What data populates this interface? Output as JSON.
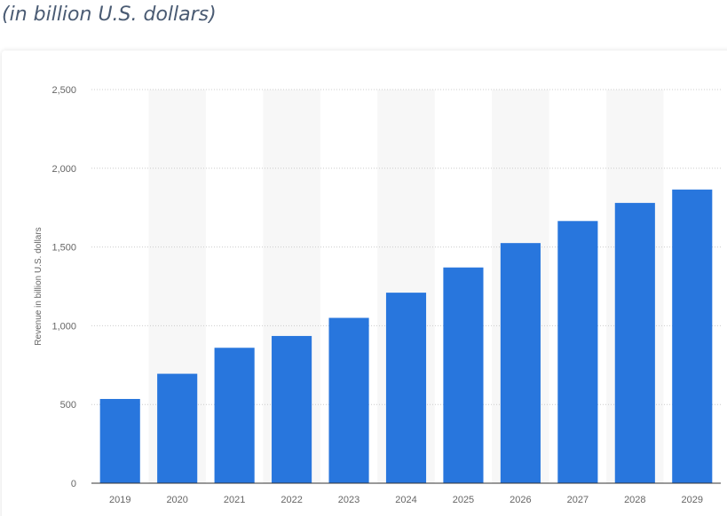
{
  "header": {
    "subtitle": "(in billion U.S. dollars)"
  },
  "colors": {
    "bar": "#2876dd",
    "band": "#f7f7f7",
    "grid": "#cccccc",
    "axis": "#333333",
    "text": "#666666",
    "subtitle": "#4a5b73"
  },
  "chart_data": {
    "type": "bar",
    "categories": [
      "2019",
      "2020",
      "2021",
      "2022",
      "2023",
      "2024",
      "2025",
      "2026",
      "2027",
      "2028",
      "2029"
    ],
    "values": [
      535,
      695,
      860,
      935,
      1050,
      1210,
      1370,
      1525,
      1665,
      1780,
      1865
    ],
    "title": "",
    "xlabel": "",
    "ylabel": "Revenue in billion U.S. dollars",
    "ylim": [
      0,
      2500
    ],
    "yticks": [
      0,
      500,
      1000,
      1500,
      2000,
      2500
    ],
    "ytick_labels": [
      "0",
      "500",
      "1,000",
      "1,500",
      "2,000",
      "2,500"
    ],
    "grid": true,
    "alternating_bands": true,
    "legend": "none"
  }
}
